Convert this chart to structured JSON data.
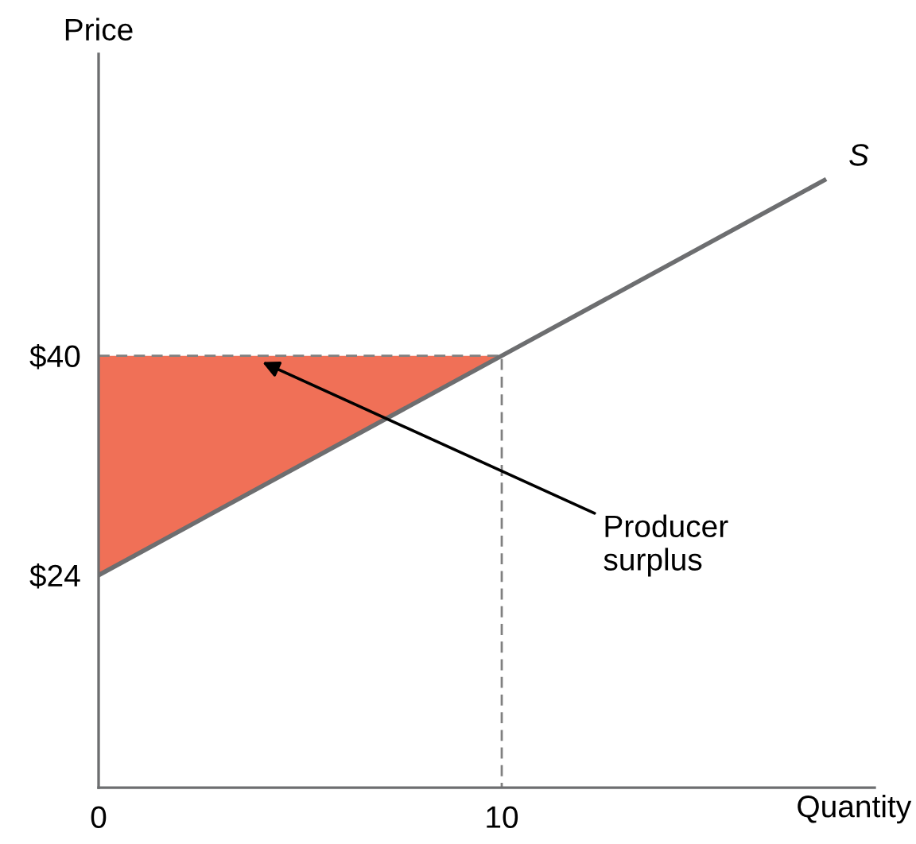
{
  "chart_data": {
    "type": "line",
    "xlabel": "Quantity",
    "ylabel": "Price",
    "xlim": [
      0,
      19.25
    ],
    "ylim": [
      8.5,
      62
    ],
    "xticks": [
      0,
      10
    ],
    "yticks": [
      {
        "value": 24,
        "label": "$24"
      },
      {
        "value": 40,
        "label": "$40"
      }
    ],
    "grid": false,
    "legend": false,
    "marker": "none",
    "series": [
      {
        "type": "area",
        "color": "#f07057",
        "x": [
          0,
          10
        ],
        "values": [
          40,
          40
        ]
      },
      {
        "line_style": "dashed",
        "color": "#808080",
        "x": [
          0,
          10,
          10
        ],
        "values": [
          40,
          40,
          8.5
        ]
      },
      {
        "name": "S",
        "color": "#6d6e70",
        "x": [
          0,
          10,
          18
        ],
        "values": [
          24,
          40,
          52.8
        ]
      }
    ],
    "annotations": [
      "Producer\nsurplus"
    ]
  }
}
